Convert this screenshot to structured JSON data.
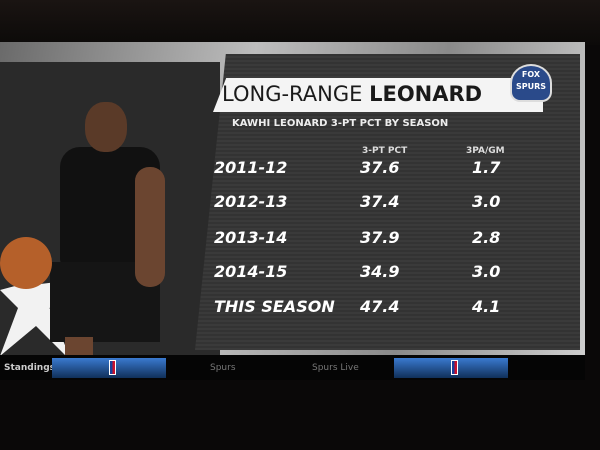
{
  "graphic": {
    "title_light": "LONG-RANGE",
    "title_bold": "LEONARD",
    "subtitle": "KAWHI LEONARD 3-PT PCT BY SEASON",
    "logo_text": "FOX SPORTS SPURS",
    "columns": [
      "3-PT PCT",
      "3PA/GM"
    ],
    "rows": [
      {
        "season": "2011-12",
        "pct": "37.6",
        "pa": "1.7"
      },
      {
        "season": "2012-13",
        "pct": "37.4",
        "pa": "3.0"
      },
      {
        "season": "2013-14",
        "pct": "37.9",
        "pa": "2.8"
      },
      {
        "season": "2014-15",
        "pct": "34.9",
        "pa": "3.0"
      },
      {
        "season": "THIS SEASON",
        "pct": "47.4",
        "pa": "4.1"
      }
    ]
  },
  "ticker": {
    "items": [
      "Standings",
      "Spurs",
      "Spurs Live"
    ],
    "accent": "#2a6ac0"
  }
}
